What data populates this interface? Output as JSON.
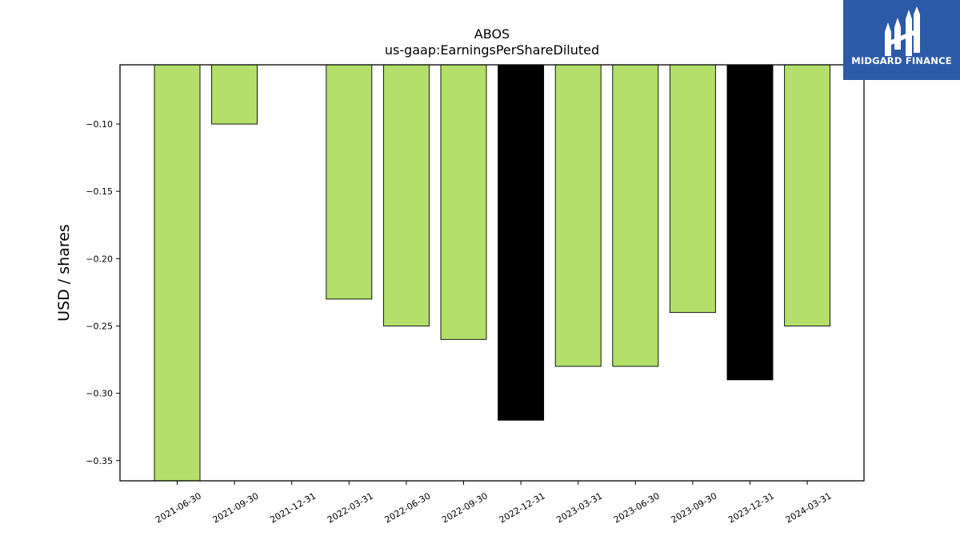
{
  "chart_data": {
    "type": "bar",
    "title": "ABOS",
    "subtitle": "us-gaap:EarningsPerShareDiluted",
    "xlabel": "",
    "ylabel": "USD / shares",
    "categories": [
      "2021-06-30",
      "2021-09-30",
      "2021-12-31",
      "2022-03-31",
      "2022-06-30",
      "2022-09-30",
      "2022-12-31",
      "2023-03-31",
      "2023-06-30",
      "2023-09-30",
      "2023-12-31",
      "2024-03-31"
    ],
    "values": [
      -0.38,
      -0.1,
      null,
      -0.23,
      -0.25,
      -0.26,
      -0.32,
      -0.28,
      -0.28,
      -0.24,
      -0.29,
      -0.25
    ],
    "bar_colors": [
      "#b3df6a",
      "#b3df6a",
      null,
      "#b3df6a",
      "#b3df6a",
      "#b3df6a",
      "#000000",
      "#b3df6a",
      "#b3df6a",
      "#b3df6a",
      "#000000",
      "#b3df6a"
    ],
    "ylim": [
      -0.365,
      -0.056
    ],
    "yticks": [
      -0.1,
      -0.15,
      -0.2,
      -0.25,
      -0.3,
      -0.35
    ],
    "ytick_labels": [
      "−0.10",
      "−0.15",
      "−0.20",
      "−0.25",
      "−0.30",
      "−0.35"
    ],
    "grid": false
  },
  "logo": {
    "text": "MIDGARD FINANCE",
    "color": "#2d5aa8"
  }
}
